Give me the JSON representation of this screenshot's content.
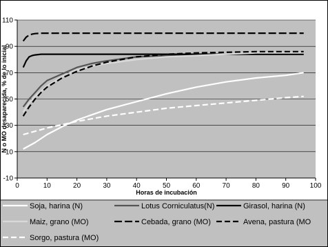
{
  "chart_data": {
    "type": "line",
    "title": "",
    "xlabel": "Horas de incubación",
    "ylabel": "N o MO desaparecida, % de lo inicial",
    "xlim": [
      0,
      100
    ],
    "ylim": [
      -10,
      110
    ],
    "xticks": [
      0,
      10,
      20,
      30,
      40,
      50,
      60,
      70,
      80,
      90,
      100
    ],
    "yticks": [
      -10,
      10,
      30,
      50,
      70,
      90,
      110
    ],
    "grid": "horizontal",
    "legend_position": "bottom",
    "series": [
      {
        "name": "Soja, harina (N)",
        "color": "#ffffff",
        "dash": "solid",
        "x": [
          2,
          6,
          10,
          15,
          20,
          30,
          40,
          50,
          60,
          70,
          80,
          90,
          96
        ],
        "y": [
          12,
          17,
          23,
          29,
          34,
          42,
          48,
          54,
          59,
          63,
          66,
          68,
          70
        ]
      },
      {
        "name": "Lotus Corniculatus(N)",
        "color": "#555555",
        "dash": "solid",
        "x": [
          2,
          4,
          6,
          8,
          10,
          15,
          20,
          25,
          30,
          40,
          50,
          60,
          70,
          80,
          90,
          96
        ],
        "y": [
          44,
          50,
          55,
          60,
          64,
          69,
          74,
          77,
          79,
          82,
          83,
          84,
          84,
          84,
          84,
          84
        ]
      },
      {
        "name": "Girasol, harina (N)",
        "color": "#000000",
        "dash": "solid",
        "x": [
          2,
          3,
          4,
          5,
          6,
          8,
          10,
          20,
          40,
          60,
          80,
          96
        ],
        "y": [
          74,
          79,
          82,
          83,
          83.5,
          84,
          84,
          84,
          84,
          84,
          84,
          84
        ]
      },
      {
        "name": "Maiz, grano (MO)",
        "color": "#d9d9d9",
        "dash": "solid",
        "x": [
          2,
          4,
          6,
          8,
          10,
          15,
          20,
          25,
          30,
          40,
          50,
          60,
          70,
          80,
          90,
          96
        ],
        "y": [
          40,
          47,
          52,
          56,
          60,
          67,
          72,
          75,
          77,
          80,
          82,
          83,
          84,
          85,
          85,
          85
        ]
      },
      {
        "name": "Cebada, grano (MO)",
        "color": "#000000",
        "dash": "longdash",
        "x": [
          2,
          3,
          4,
          5,
          6,
          8,
          10,
          20,
          40,
          60,
          80,
          96
        ],
        "y": [
          94,
          97,
          98.5,
          99.3,
          99.7,
          100,
          100,
          100,
          100,
          100,
          100,
          100
        ]
      },
      {
        "name": "Avena, pastura (MO",
        "color": "#000000",
        "dash": "dash",
        "x": [
          2,
          4,
          6,
          8,
          10,
          15,
          20,
          25,
          30,
          40,
          50,
          60,
          70,
          80,
          90,
          96
        ],
        "y": [
          37,
          44,
          50,
          55,
          59,
          66,
          71,
          75,
          78,
          82,
          84,
          85,
          85.5,
          86,
          86,
          86
        ]
      },
      {
        "name": "Sorgo, pastura (MO)",
        "color": "#ffffff",
        "dash": "dash",
        "x": [
          2,
          10,
          20,
          30,
          40,
          50,
          60,
          70,
          80,
          90,
          96
        ],
        "y": [
          23,
          28,
          33,
          37,
          40,
          43,
          45,
          47,
          49,
          51,
          52
        ]
      }
    ]
  }
}
